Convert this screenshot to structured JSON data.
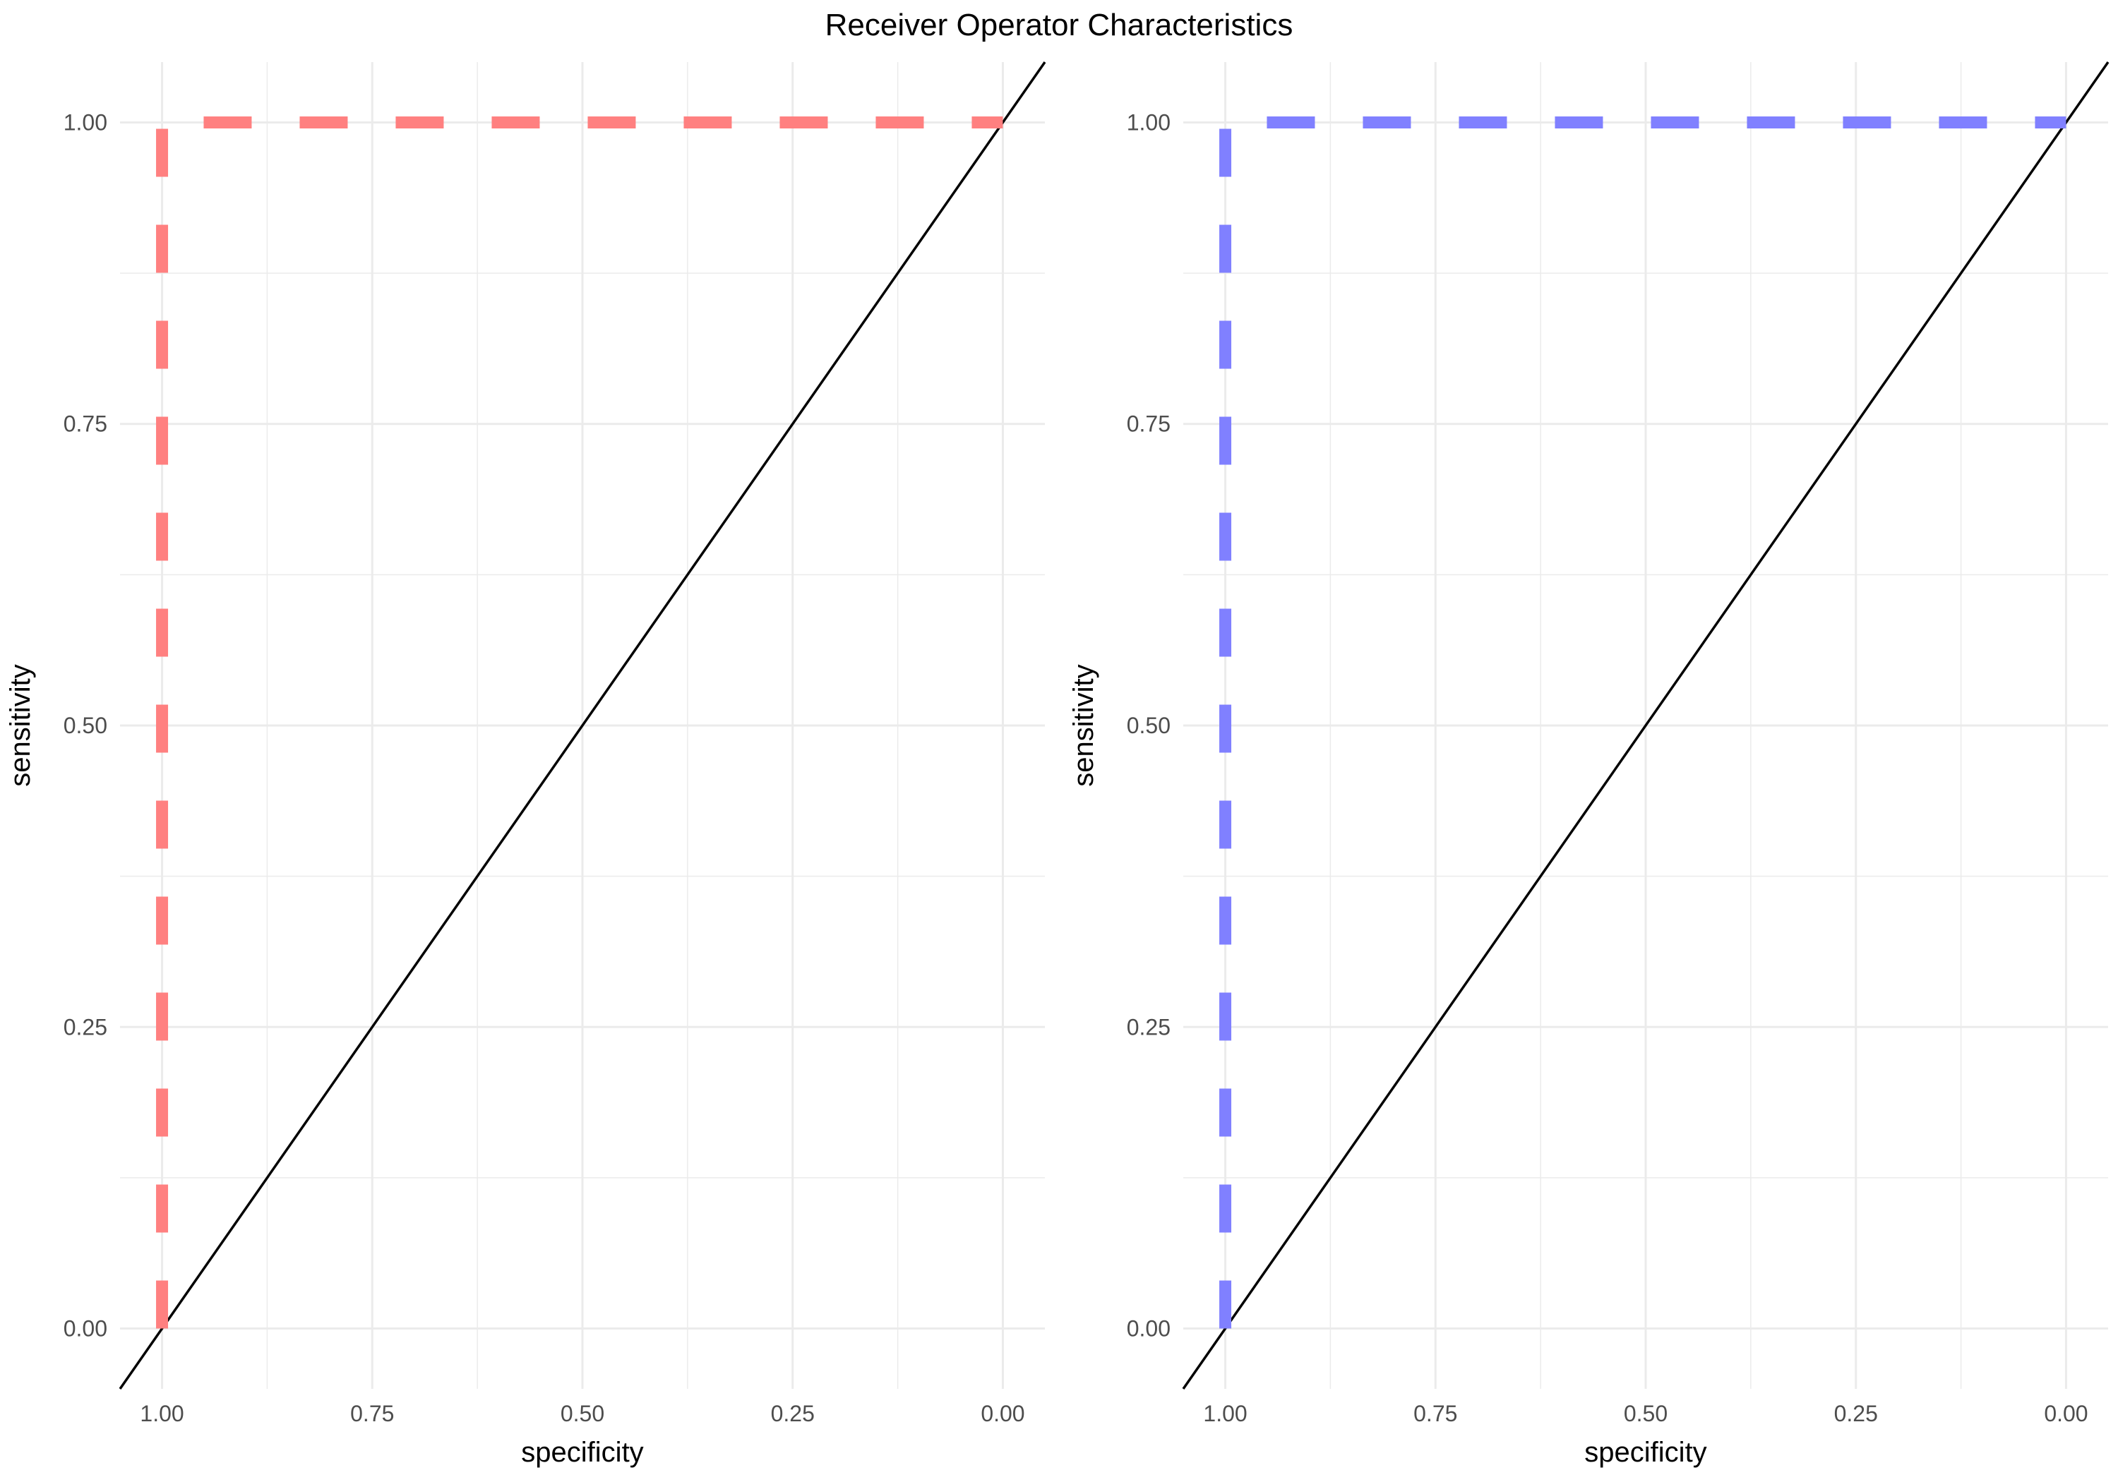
{
  "title": "Receiver Operator Characteristics",
  "chart_data": [
    {
      "type": "line",
      "xlabel": "specificity",
      "ylabel": "sensitivity",
      "x_reversed": true,
      "xlim": [
        1.05,
        -0.05
      ],
      "ylim": [
        -0.05,
        1.05
      ],
      "xticks": [
        "1.00",
        "0.75",
        "0.50",
        "0.25",
        "0.00"
      ],
      "yticks": [
        "0.00",
        "0.25",
        "0.50",
        "0.75",
        "1.00"
      ],
      "grid": true,
      "series": [
        {
          "line_style": "dashed",
          "color": "#ff8080",
          "points": [
            [
              1,
              0
            ],
            [
              1,
              1
            ],
            [
              0,
              1
            ]
          ]
        }
      ],
      "reference_line": {
        "line_style": "solid",
        "color": "#000000",
        "points": [
          [
            1,
            0
          ],
          [
            0,
            1
          ]
        ]
      }
    },
    {
      "type": "line",
      "xlabel": "specificity",
      "ylabel": "sensitivity",
      "x_reversed": true,
      "xlim": [
        1.05,
        -0.05
      ],
      "ylim": [
        -0.05,
        1.05
      ],
      "xticks": [
        "1.00",
        "0.75",
        "0.50",
        "0.25",
        "0.00"
      ],
      "yticks": [
        "0.00",
        "0.25",
        "0.50",
        "0.75",
        "1.00"
      ],
      "grid": true,
      "series": [
        {
          "line_style": "dashed",
          "color": "#8080ff",
          "points": [
            [
              1,
              0
            ],
            [
              1,
              1
            ],
            [
              0,
              1
            ]
          ]
        }
      ],
      "reference_line": {
        "line_style": "solid",
        "color": "#000000",
        "points": [
          [
            1,
            0
          ],
          [
            0,
            1
          ]
        ]
      }
    }
  ]
}
